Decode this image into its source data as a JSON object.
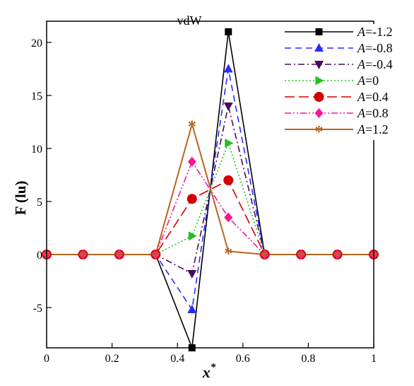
{
  "chart_data": {
    "type": "line",
    "title": "vdW",
    "xlabel": "x",
    "xlabel_superscript": "*",
    "ylabel": "F (lu)",
    "xlim": [
      0,
      1
    ],
    "ylim": [
      -8.8,
      22
    ],
    "xticks": [
      0,
      0.2,
      0.4,
      0.6,
      0.8,
      1
    ],
    "xtick_labels": [
      "0",
      "0.2",
      "0.4",
      "0.6",
      "0.8",
      "1"
    ],
    "yticks": [
      -5,
      0,
      5,
      10,
      15,
      20
    ],
    "ytick_labels": [
      "-5",
      "0",
      "5",
      "10",
      "15",
      "20"
    ],
    "grid": false,
    "legend_position": "top-right",
    "legend_prefix": "A",
    "x": [
      0,
      0.1111,
      0.2222,
      0.3333,
      0.4444,
      0.5556,
      0.6667,
      0.7778,
      0.8889,
      1
    ],
    "series": [
      {
        "name": "=-1.2",
        "color": "#000000",
        "dash": "",
        "width": 1.6,
        "marker": "square",
        "values": [
          0,
          0,
          0,
          0,
          -8.8,
          21.0,
          0,
          0,
          0,
          0
        ],
        "marker_idx": [
          4,
          5
        ]
      },
      {
        "name": "=-0.8",
        "color": "#2b2bff",
        "dash": "9,6",
        "width": 1.6,
        "marker": "triangle-up",
        "values": [
          0,
          0,
          0,
          0,
          -5.2,
          17.5,
          0,
          0,
          0,
          0
        ],
        "marker_idx": [
          4,
          5
        ]
      },
      {
        "name": "=-0.4",
        "color": "#4b0a5a",
        "dash": "9,4,2,4",
        "width": 1.6,
        "marker": "triangle-down",
        "values": [
          0,
          0,
          0,
          0,
          -1.8,
          14.0,
          0,
          0,
          0,
          0
        ],
        "marker_idx": [
          4,
          5
        ]
      },
      {
        "name": "=0",
        "color": "#22c022",
        "dash": "2,3",
        "width": 1.6,
        "marker": "triangle-right",
        "values": [
          0,
          0,
          0,
          0,
          1.75,
          10.5,
          0,
          0,
          0,
          0
        ],
        "marker_idx": [
          4,
          5
        ]
      },
      {
        "name": "=0.4",
        "color": "#d40000",
        "dash": "14,6",
        "width": 1.6,
        "marker": "circle",
        "values": [
          0,
          0,
          0,
          0,
          5.25,
          7.0,
          0,
          0,
          0,
          0
        ],
        "marker_idx": [
          0,
          1,
          2,
          3,
          4,
          5,
          6,
          7,
          8,
          9
        ]
      },
      {
        "name": "=0.8",
        "color": "#ff1493",
        "dash": "9,3,2,3,2,3",
        "width": 1.6,
        "marker": "diamond",
        "values": [
          0,
          0,
          0,
          0,
          8.75,
          3.5,
          0,
          0,
          0,
          0
        ],
        "marker_idx": [
          0,
          1,
          2,
          3,
          4,
          5,
          6,
          7,
          8,
          9
        ]
      },
      {
        "name": "=1.2",
        "color": "#b8651e",
        "dash": "",
        "width": 2,
        "marker": "asterisk",
        "values": [
          0,
          0,
          0,
          0,
          12.3,
          0.3,
          0,
          0,
          0,
          0
        ],
        "marker_idx": [
          0,
          1,
          2,
          3,
          4,
          5,
          6,
          7,
          8,
          9
        ]
      }
    ]
  }
}
